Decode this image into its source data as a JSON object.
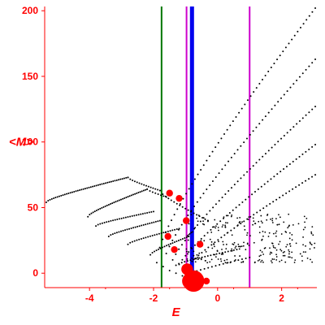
{
  "chart_data": {
    "type": "scatter",
    "title": "",
    "xlabel": "E",
    "ylabel": "<M>",
    "xlim": [
      -5.4,
      3.1
    ],
    "ylim": [
      -11,
      202
    ],
    "x_ticks": [
      -4,
      -2,
      0,
      2
    ],
    "y_ticks": [
      0,
      50,
      100,
      150,
      200
    ],
    "x_tick_labels": [
      "-4",
      "-2",
      "0",
      "2"
    ],
    "y_tick_labels": [
      "0",
      "50",
      "100",
      "150",
      "200"
    ],
    "grid": false,
    "legend": "none",
    "colors": {
      "axis": "#ff0000",
      "points": "#000000",
      "highlight": "#ff0000"
    },
    "vertical_lines": [
      {
        "x": -1.75,
        "color": "#007700",
        "width": 2
      },
      {
        "x": -0.97,
        "color": "#cc00cc",
        "width": 2
      },
      {
        "x": -0.8,
        "color": "#0000ee",
        "width": 5
      },
      {
        "x": 1.0,
        "color": "#cc00cc",
        "width": 2
      }
    ],
    "bands": [
      {
        "x_start": -1.9,
        "x_end": 3.05,
        "y_start": 8,
        "y_end": 202,
        "count": 55
      },
      {
        "x_start": -1.7,
        "x_end": 3.05,
        "y_start": 5,
        "y_end": 163,
        "count": 50
      },
      {
        "x_start": -1.5,
        "x_end": 3.05,
        "y_start": 2,
        "y_end": 127,
        "count": 48
      },
      {
        "x_start": -1.3,
        "x_end": 3.05,
        "y_start": 0,
        "y_end": 98,
        "count": 45
      },
      {
        "x_start": -1.1,
        "x_end": 3.05,
        "y_start": -2,
        "y_end": 75,
        "count": 42
      },
      {
        "x_start": -5.35,
        "x_end": -2.8,
        "y_start": 54,
        "y_end": 73,
        "count": 45
      },
      {
        "x_start": -2.8,
        "x_end": -1.8,
        "y_start": 73,
        "y_end": 63,
        "count": 15
      },
      {
        "x_start": -1.8,
        "x_end": -0.3,
        "y_start": 63,
        "y_end": 40,
        "count": 18
      },
      {
        "x_start": -4.05,
        "x_end": -2.2,
        "y_start": 43,
        "y_end": 64,
        "count": 35
      },
      {
        "x_start": -2.2,
        "x_end": -1.6,
        "y_start": 64,
        "y_end": 58,
        "count": 8
      },
      {
        "x_start": -3.8,
        "x_end": -2.0,
        "y_start": 36,
        "y_end": 47,
        "count": 28
      },
      {
        "x_start": -3.4,
        "x_end": -1.8,
        "y_start": 28,
        "y_end": 40,
        "count": 26
      },
      {
        "x_start": -2.8,
        "x_end": -1.2,
        "y_start": 22,
        "y_end": 34,
        "count": 24
      },
      {
        "x_start": -2.1,
        "x_end": -0.9,
        "y_start": 14,
        "y_end": 28,
        "count": 20
      },
      {
        "x_start": -1.3,
        "x_end": 0.6,
        "y_start": 6,
        "y_end": 18,
        "count": 22
      },
      {
        "x_start": -1.0,
        "x_end": 1.0,
        "y_start": -2,
        "y_end": 12,
        "count": 18
      }
    ],
    "cloud": {
      "x_start": -1.0,
      "x_end": 3.05,
      "y_start": 8,
      "y_end": 45,
      "count": 260
    },
    "highlight_points": [
      {
        "x": -0.75,
        "y": -6,
        "size": 4
      },
      {
        "x": -0.85,
        "y": -6,
        "size": 3
      },
      {
        "x": -0.95,
        "y": 3,
        "size": 2
      },
      {
        "x": -0.35,
        "y": -6,
        "size": 1
      },
      {
        "x": -0.98,
        "y": 40,
        "size": 1
      },
      {
        "x": -0.55,
        "y": 22,
        "size": 1
      },
      {
        "x": -1.2,
        "y": 57,
        "size": 1
      },
      {
        "x": -1.55,
        "y": 28,
        "size": 1
      },
      {
        "x": -1.35,
        "y": 18,
        "size": 1
      },
      {
        "x": -1.5,
        "y": 61,
        "size": 1
      }
    ]
  }
}
